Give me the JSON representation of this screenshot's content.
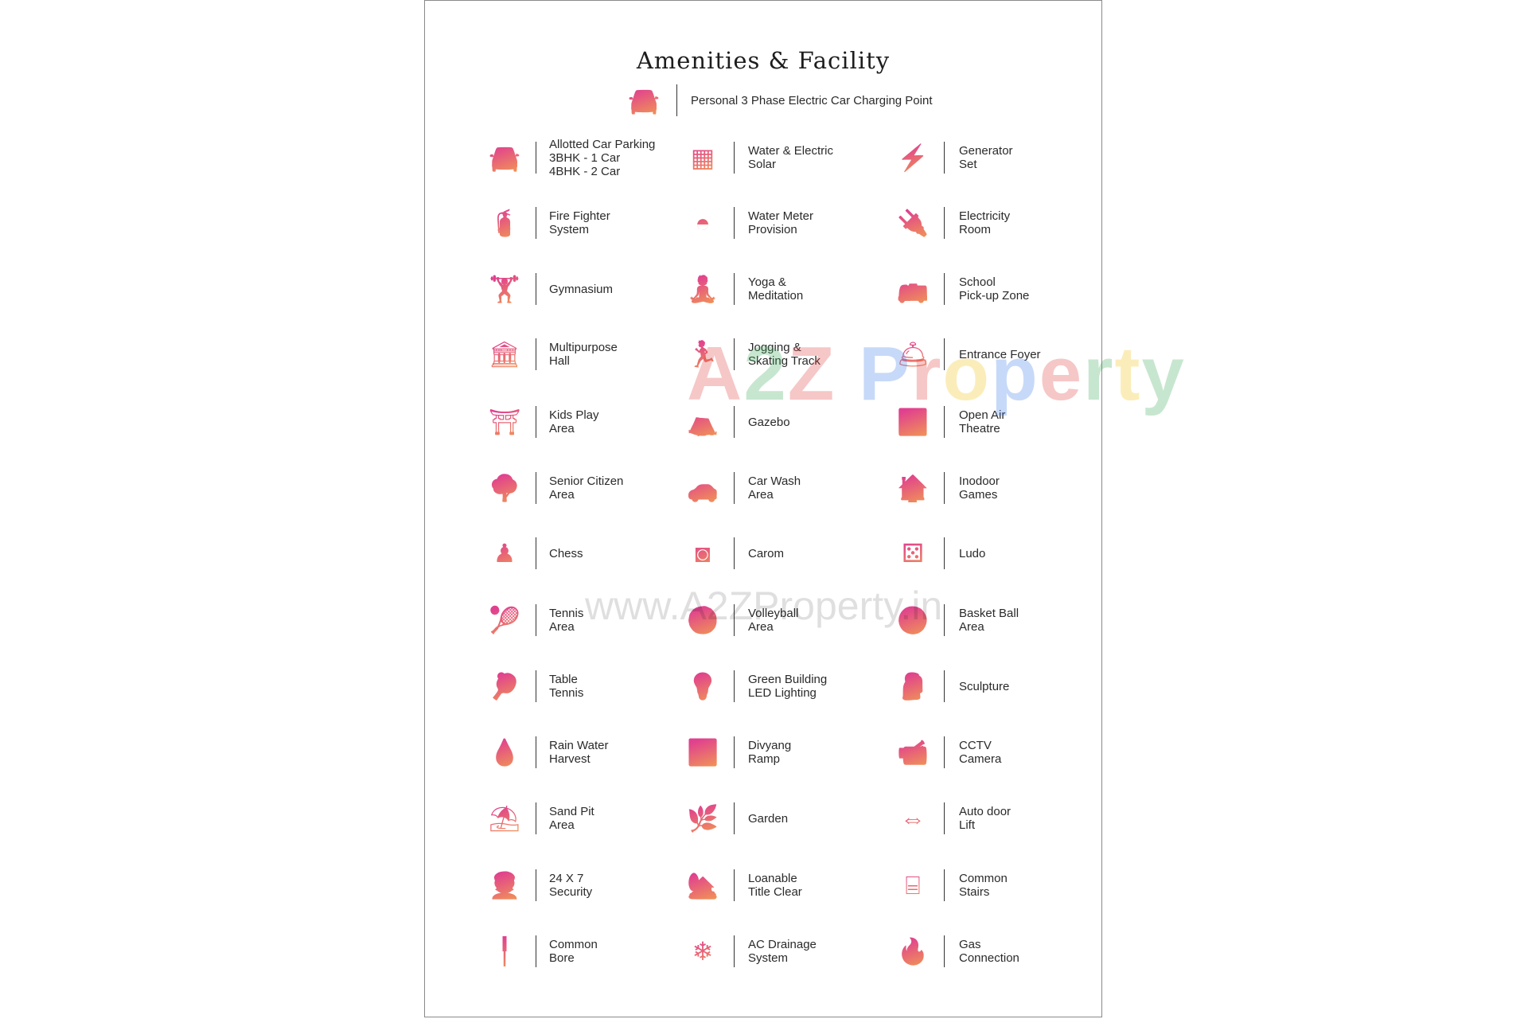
{
  "title": "Amenities & Facility",
  "highlight": {
    "label": "Personal 3 Phase Electric Car Charging Point",
    "icon": "ev-charging-car-icon"
  },
  "icon_gradient": [
    "#e0408f",
    "#f29a52"
  ],
  "rows": [
    [
      {
        "l": [
          "Allotted Car Parking",
          "3BHK - 1 Car",
          "4BHK - 2 Car"
        ],
        "icon": "car-icon",
        "g": "🚘"
      },
      {
        "l": [
          "Water & Electric",
          "Solar"
        ],
        "icon": "solar-panel-icon",
        "g": "▦"
      },
      {
        "l": [
          "Generator",
          "Set"
        ],
        "icon": "generator-icon",
        "g": "⚡"
      }
    ],
    [
      {
        "l": [
          "Fire Fighter",
          "System"
        ],
        "icon": "fire-extinguisher-icon",
        "g": "🧯"
      },
      {
        "l": [
          "Water Meter",
          "Provision"
        ],
        "icon": "water-meter-icon",
        "g": "◓"
      },
      {
        "l": [
          "Electricity",
          "Room"
        ],
        "icon": "plug-icon",
        "g": "🔌"
      }
    ],
    [
      {
        "l": [
          "Gymnasium"
        ],
        "icon": "dumbbell-icon",
        "g": "🏋"
      },
      {
        "l": [
          "Yoga &",
          "Meditation"
        ],
        "icon": "yoga-icon",
        "g": "🧘"
      },
      {
        "l": [
          "School",
          "Pick-up Zone"
        ],
        "icon": "school-bus-icon",
        "g": "🚌"
      }
    ],
    [
      {
        "l": [
          "Multipurpose",
          "Hall"
        ],
        "icon": "hall-building-icon",
        "g": "🏛"
      },
      {
        "l": [
          "Jogging &",
          "Skating Track"
        ],
        "icon": "runner-icon",
        "g": "🏃"
      },
      {
        "l": [
          "Entrance Foyer"
        ],
        "icon": "reception-desk-icon",
        "g": "🛎"
      }
    ],
    [
      {
        "l": [
          "Kids Play",
          "Area"
        ],
        "icon": "swing-icon",
        "g": "⛩"
      },
      {
        "l": [
          "Gazebo"
        ],
        "icon": "gazebo-icon",
        "g": "⛺"
      },
      {
        "l": [
          "Open Air",
          "Theatre"
        ],
        "icon": "theatre-screen-icon",
        "g": "🎦"
      }
    ],
    [
      {
        "l": [
          "Senior Citizen",
          "Area"
        ],
        "icon": "bench-tree-icon",
        "g": "🌳"
      },
      {
        "l": [
          "Car Wash",
          "Area"
        ],
        "icon": "car-wash-icon",
        "g": "🚗"
      },
      {
        "l": [
          "Inodoor",
          "Games"
        ],
        "icon": "indoor-games-icon",
        "g": "🏠"
      }
    ],
    [
      {
        "l": [
          "Chess"
        ],
        "icon": "chess-icon",
        "g": "♟"
      },
      {
        "l": [
          "Carom"
        ],
        "icon": "carom-board-icon",
        "g": "◙"
      },
      {
        "l": [
          "Ludo"
        ],
        "icon": "ludo-icon",
        "g": "⚄"
      }
    ],
    [
      {
        "l": [
          "Tennis",
          "Area"
        ],
        "icon": "tennis-racket-icon",
        "g": "🎾"
      },
      {
        "l": [
          "Volleyball",
          "Area"
        ],
        "icon": "volleyball-player-icon",
        "g": "🏐"
      },
      {
        "l": [
          "Basket Ball",
          "Area"
        ],
        "icon": "basketball-icon",
        "g": "🏀"
      }
    ],
    [
      {
        "l": [
          "Table",
          "Tennis"
        ],
        "icon": "table-tennis-icon",
        "g": "🏓"
      },
      {
        "l": [
          "Green Building",
          "LED Lighting"
        ],
        "icon": "bulb-icon",
        "g": "💡"
      },
      {
        "l": [
          "Sculpture"
        ],
        "icon": "sculpture-icon",
        "g": "🗿"
      }
    ],
    [
      {
        "l": [
          "Rain Water",
          "Harvest"
        ],
        "icon": "rain-water-hand-icon",
        "g": "💧"
      },
      {
        "l": [
          "Divyang",
          "Ramp"
        ],
        "icon": "wheelchair-ramp-icon",
        "g": "♿"
      },
      {
        "l": [
          "CCTV",
          "Camera"
        ],
        "icon": "cctv-icon",
        "g": "📹"
      }
    ],
    [
      {
        "l": [
          "Sand Pit",
          "Area"
        ],
        "icon": "sand-pit-icon",
        "g": "⛱"
      },
      {
        "l": [
          "Garden"
        ],
        "icon": "grass-icon",
        "g": "🌿"
      },
      {
        "l": [
          "Auto door",
          "Lift"
        ],
        "icon": "lift-door-icon",
        "g": "⇔"
      }
    ],
    [
      {
        "l": [
          "24 X 7",
          "Security"
        ],
        "icon": "security-guard-icon",
        "g": "👮"
      },
      {
        "l": [
          "Loanable",
          "Title Clear"
        ],
        "icon": "house-loan-icon",
        "g": "🏡"
      },
      {
        "l": [
          "Common",
          "Stairs"
        ],
        "icon": "stairs-icon",
        "g": "⌸"
      }
    ],
    [
      {
        "l": [
          "Common",
          "Bore"
        ],
        "icon": "bore-pipe-icon",
        "g": "╿"
      },
      {
        "l": [
          "AC Drainage",
          "System"
        ],
        "icon": "ac-unit-icon",
        "g": "❄"
      },
      {
        "l": [
          "Gas",
          "Connection"
        ],
        "icon": "gas-stove-icon",
        "g": "🔥"
      }
    ]
  ],
  "watermarks": {
    "brand": [
      "A",
      "2",
      "Z",
      " ",
      "P",
      "r",
      "o",
      "p",
      "e",
      "r",
      "t",
      "y"
    ],
    "brand_colors": [
      "#e03b3b",
      "#3aa757",
      "#e03b3b",
      "#fff",
      "#3b78e7",
      "#e03b3b",
      "#f4c20d",
      "#3b78e7",
      "#e03b3b",
      "#3aa757",
      "#f4c20d",
      "#3aa757"
    ],
    "url": "www.A2ZProperty.in"
  }
}
